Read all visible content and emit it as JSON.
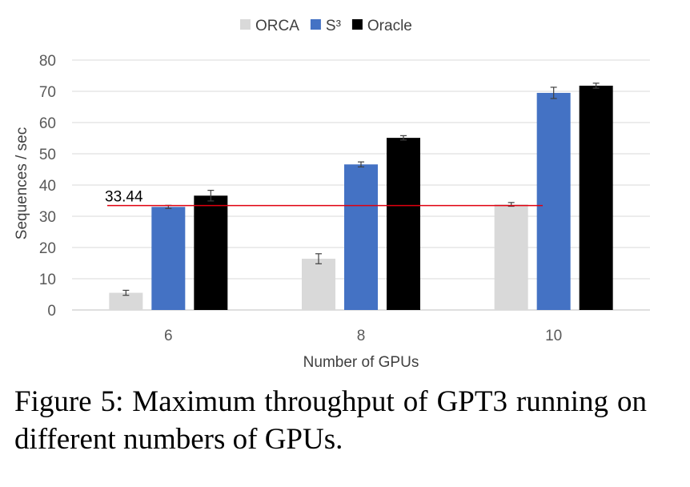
{
  "chart_data": {
    "type": "bar",
    "categories": [
      "6",
      "8",
      "10"
    ],
    "series": [
      {
        "name": "ORCA",
        "color": "#d9d9d9",
        "values": [
          5.5,
          16.4,
          33.8
        ],
        "errors": [
          0.8,
          1.6,
          0.6
        ]
      },
      {
        "name": "S³",
        "color": "#4472c4",
        "values": [
          33.0,
          46.6,
          69.5
        ],
        "errors": [
          0.5,
          0.8,
          1.8
        ]
      },
      {
        "name": "Oracle",
        "color": "#000000",
        "values": [
          36.6,
          55.1,
          71.8
        ],
        "errors": [
          1.7,
          0.7,
          0.8
        ]
      }
    ],
    "reference_line": {
      "value": 33.44,
      "label": "33.44",
      "color": "#e0000f"
    },
    "xlabel": "Number of GPUs",
    "ylabel": "Sequences / sec",
    "ylim": [
      0,
      80
    ],
    "yticks": [
      0,
      10,
      20,
      30,
      40,
      50,
      60,
      70,
      80
    ],
    "grid": true,
    "legend_position": "top-center"
  },
  "caption": "Figure 5: Maximum throughput of GPT3 running on different numbers of GPUs."
}
